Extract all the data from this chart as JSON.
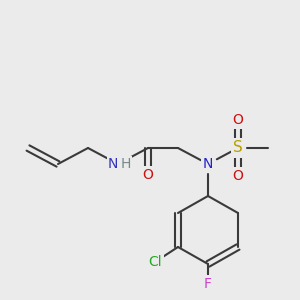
{
  "background_color": "#ebebeb",
  "figsize": [
    3.0,
    3.0
  ],
  "dpi": 100,
  "bond_color": "#3a3a3a",
  "bond_lw": 1.5,
  "atom_labels": {
    "NH": {
      "text": "NH",
      "color": "#4444bb",
      "fontsize": 10,
      "ha": "center",
      "va": "center"
    },
    "H": {
      "text": "H",
      "color": "#7a8a8a",
      "fontsize": 10,
      "ha": "center",
      "va": "center"
    },
    "O_co": {
      "text": "O",
      "color": "#cc1111",
      "fontsize": 10,
      "ha": "center",
      "va": "center"
    },
    "N_s": {
      "text": "N",
      "color": "#2222bb",
      "fontsize": 10,
      "ha": "center",
      "va": "center"
    },
    "S": {
      "text": "S",
      "color": "#b8a000",
      "fontsize": 10.5,
      "ha": "center",
      "va": "center"
    },
    "O_up": {
      "text": "O",
      "color": "#cc1111",
      "fontsize": 10,
      "ha": "center",
      "va": "center"
    },
    "O_dn": {
      "text": "O",
      "color": "#cc1111",
      "fontsize": 10,
      "ha": "center",
      "va": "center"
    },
    "Cl": {
      "text": "Cl",
      "color": "#22aa22",
      "fontsize": 10,
      "ha": "center",
      "va": "center"
    },
    "F": {
      "text": "F",
      "color": "#cc44cc",
      "fontsize": 10,
      "ha": "center",
      "va": "center"
    }
  }
}
